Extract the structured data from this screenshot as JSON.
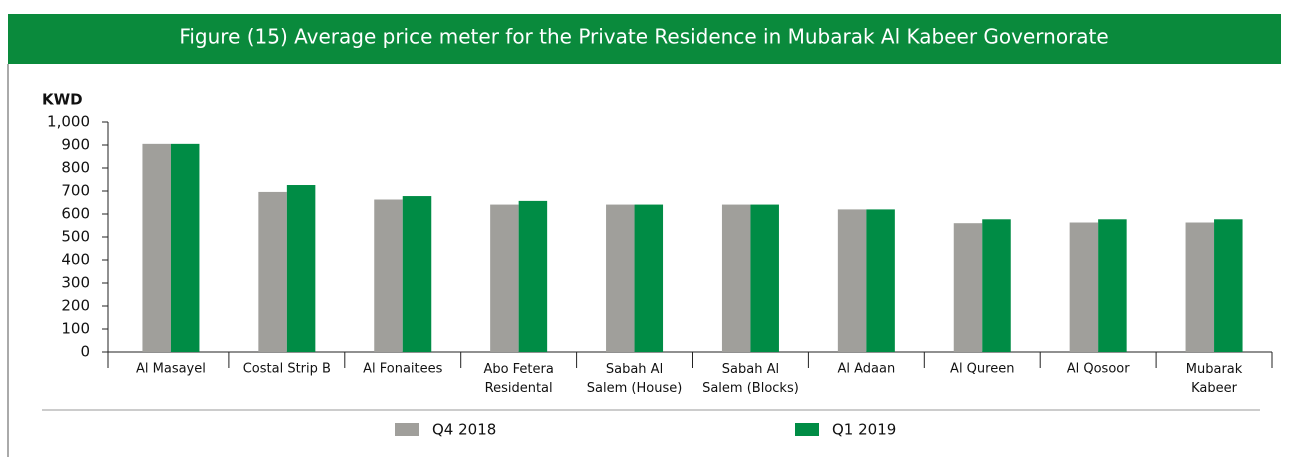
{
  "chart_data": {
    "type": "bar",
    "title": "Figure (15) Average price meter for the Private Residence in Mubarak Al Kabeer Governorate",
    "y_axis_label": "KWD",
    "categories": [
      "Al Masayel",
      "Costal Strip B",
      "Al Fonaitees",
      "Abo Fetera\nResidental",
      "Sabah Al\nSalem (House)",
      "Sabah Al\nSalem (Blocks)",
      "Al Adaan",
      "Al Qureen",
      "Al Qosoor",
      "Mubarak\nKabeer"
    ],
    "series": [
      {
        "name": "Q4 2018",
        "color": "#a09f9b",
        "values": [
          905,
          696,
          663,
          641,
          641,
          641,
          620,
          560,
          563,
          563
        ]
      },
      {
        "name": "Q1 2019",
        "color": "#008c45",
        "values": [
          905,
          726,
          678,
          657,
          641,
          641,
          620,
          577,
          577,
          577
        ]
      }
    ],
    "ylim": [
      0,
      1000
    ],
    "yticks": [
      0,
      100,
      200,
      300,
      400,
      500,
      600,
      700,
      800,
      900,
      {
        "value": 1000,
        "label": "1,000"
      }
    ],
    "legend": "bottom"
  }
}
